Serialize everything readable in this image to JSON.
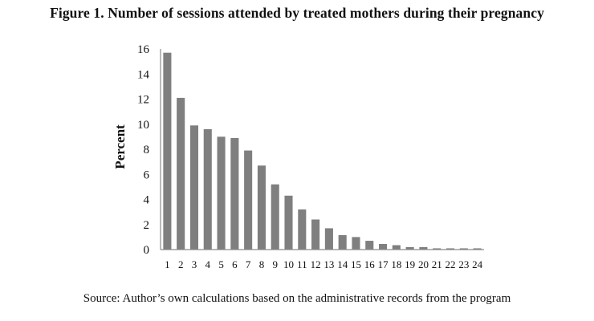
{
  "chart_data": {
    "type": "bar",
    "title": "Figure 1. Number of sessions attended by treated mothers during their pregnancy",
    "xlabel": "",
    "ylabel": "Percent",
    "categories": [
      "1",
      "2",
      "3",
      "4",
      "5",
      "6",
      "7",
      "8",
      "9",
      "10",
      "11",
      "12",
      "13",
      "14",
      "15",
      "16",
      "17",
      "18",
      "19",
      "20",
      "21",
      "22",
      "23",
      "24"
    ],
    "values": [
      15.7,
      12.1,
      9.9,
      9.6,
      9.0,
      8.9,
      7.9,
      6.7,
      5.2,
      4.3,
      3.2,
      2.4,
      1.7,
      1.15,
      1.0,
      0.7,
      0.45,
      0.35,
      0.2,
      0.2,
      0.1,
      0.1,
      0.1,
      0.1
    ],
    "ylim": [
      0,
      16
    ],
    "yticks": [
      0,
      2,
      4,
      6,
      8,
      10,
      12,
      14,
      16
    ],
    "grid": false,
    "legend": "none",
    "bar_color": "#7f7f7f",
    "source": "Source: Author’s own calculations based on the administrative records from the program"
  }
}
